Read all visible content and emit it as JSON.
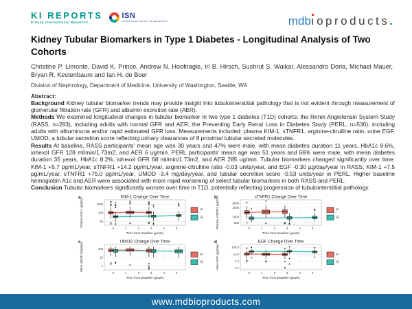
{
  "header": {
    "ki_logo": {
      "title": "KI REPORTS",
      "subtitle": "Kidney International Reports®"
    },
    "isn_logo": {
      "text": "ISN",
      "subtitle": "INTERNATIONAL SOCIETY OF NEPHROLOGY"
    },
    "mdb_logo": {
      "part1": "mdb",
      "i_stem": "ı",
      "part2": "oproducts",
      "dot": "."
    }
  },
  "title": "Kidney Tubular Biomarkers in Type 1 Diabetes - Longitudinal Analysis of Two Cohorts",
  "authors": "Christine P. Limonte, David K. Prince, Andrew N. Hoofnagle, Irl B. Hirsch, Sushrut S. Waikar, Alessandro Doria, Michael Mauer, Bryan R. Kestenbaum and Ian H. de Boer",
  "affiliation": "Division of Nephrology, Department of Medicine, University of Washington, Seattle, WA",
  "abstract": {
    "heading": "Abstract:",
    "sections": [
      {
        "label": "Background",
        "text": " Kidney tubular biomarker trends may provide insight into tubulointerstitial pathology that is not evident through measurement of glomerular filtration rate (GFR) and albumin excretion rate (AER)."
      },
      {
        "label": "Methods",
        "text": " We examined longitudinal changes in tubular biomarker in two type 1 diabetes (T1D) cohorts: the Renin Angiotensin System Study (RASS, n=283), including adults with normal GFR and AER; the Preventing Early Renal Loss in Diabetes Study (PERL, n=530), including adults with albuminuria and/or rapid estimated GFR loss. Measurements included: plasma KIM-1, sTNFR1, arginine-citrulline ratio; urine EGF, UMOD; a tubular secretion score reflecting urinary clearances of 8 proximal tubular secreted molecules."
      },
      {
        "label": "Results",
        "text": " At baseline, RASS participants' mean age was 30 years and 47% were male, with mean diabetes duration 11 years, HbA1c 8.6%, iohexol GFR 128 ml/min/1.73m2, and AER 6 ug/min. PERL participants' mean age was 51 years and 66% were male, with mean diabetes duration 35 years, HbA1c 8.2%, iohexol GFR 68 ml/min/1.73m2, and AER 285 ug/min. Tubular biomarkers changed significantly over time: KIM-1 +5.7 pg/mL/year, sTNFR1 +14.2 pg/mL/year, arginine-citrulline ratio -0.03 units/year, and EGF -0.30 µg/day/year in RASS; KIM-1 +7.5 pg/mL/year, sTNFR1 +75.0 pg/mL/year, UMOD -3.4 mg/day/year, and tubular secretion score -0.53 units/year in PERL. Higher baseline hemoglobin A1c and AER were associated with more rapid worsening of select tubular biomarkers in both RASS and PERL."
      },
      {
        "label": "Conclusion",
        "text": " Tubular biomarkers significantly worsen over time in T1D, potentially reflecting progression of tubulointerstitial pathology."
      }
    ]
  },
  "footer": {
    "url": "www.mdbioproducts.com",
    "bg_color": "#17699e"
  },
  "colors": {
    "ki_teal": "#00968b",
    "isn_blue": "#2b3a8f",
    "mdb_blue": "#2e7fc1",
    "mdb_red": "#e6332a",
    "perl_red": "#e96a5f",
    "rass_teal": "#35bfb3",
    "footer_blue": "#17699e"
  },
  "chart_data": [
    {
      "type": "boxplot",
      "panel": "a",
      "title": "KIM-1 Change Over Time",
      "xlabel": "Time from baseline (years)",
      "ylabel": "Plasma KIM-1 (pg/mL)",
      "x_ticks": [
        0,
        1,
        2,
        3,
        4,
        5
      ],
      "x_domain": [
        -0.7,
        5.7
      ],
      "y_scale": "log10",
      "y_domain": [
        3.5,
        3200
      ],
      "y_ticks": [
        10,
        100,
        1000
      ],
      "y_tick_labels": [
        "10",
        "100",
        "1000"
      ],
      "legend": [
        {
          "label": "P",
          "color": "#e96a5f"
        },
        {
          "label": "R",
          "color": "#35bfb3"
        }
      ],
      "series": [
        {
          "name": "P",
          "color": "#e96a5f",
          "dodge": -0.18,
          "boxes": [
            {
              "t": 0,
              "med": 100,
              "q1": 72,
              "q3": 140,
              "lo": 22,
              "hi": 430,
              "out": [
                1400,
                2000,
                900,
                700,
                7,
                5
              ]
            },
            {
              "t": 1.5,
              "med": 112,
              "q1": 78,
              "q3": 160,
              "lo": 24,
              "hi": 520,
              "out": [
                2200,
                1500,
                1100,
                6
              ],
              "w": 11
            },
            {
              "t": 3,
              "med": 108,
              "q1": 76,
              "q3": 150,
              "lo": 25,
              "hi": 480,
              "out": [
                1800,
                1200,
                900,
                8,
                6
              ]
            }
          ]
        },
        {
          "name": "R",
          "color": "#35bfb3",
          "dodge": 0.18,
          "boxes": [
            {
              "t": 0,
              "med": 35,
              "q1": 27,
              "q3": 46,
              "lo": 9,
              "hi": 130,
              "out": [
                400,
                650,
                900,
                1500,
                5
              ]
            },
            {
              "t": 3,
              "med": 40,
              "q1": 30,
              "q3": 52,
              "lo": 10,
              "hi": 150,
              "out": [
                500,
                800,
                6,
                4
              ]
            },
            {
              "t": 5,
              "med": 48,
              "q1": 36,
              "q3": 62,
              "lo": 12,
              "hi": 170,
              "out": [
                600,
                900,
                1200
              ]
            }
          ]
        }
      ]
    },
    {
      "type": "boxplot",
      "panel": "b",
      "title": "sTNFR1 Change Over Time",
      "xlabel": "Time from baseline (years)",
      "ylabel": "Plasma sTNFR1 (pg/mL)",
      "x_ticks": [
        0,
        1,
        2,
        3,
        4,
        5
      ],
      "x_domain": [
        -0.7,
        5.7
      ],
      "y_scale": "log10",
      "y_domain": [
        380,
        7500
      ],
      "y_ticks": [
        500,
        1000,
        3000,
        5000
      ],
      "y_tick_labels": [
        "500",
        "1000",
        "3000",
        "5000"
      ],
      "legend": [
        {
          "label": "P",
          "color": "#e96a5f"
        },
        {
          "label": "R",
          "color": "#35bfb3"
        }
      ],
      "series": [
        {
          "name": "P",
          "color": "#e96a5f",
          "dodge": -0.18,
          "boxes": [
            {
              "t": 0,
              "med": 1700,
              "q1": 1400,
              "q3": 2100,
              "lo": 800,
              "hi": 3600,
              "out": [
                5500,
                500
              ]
            },
            {
              "t": 1.5,
              "med": 1800,
              "q1": 1450,
              "q3": 2250,
              "lo": 850,
              "hi": 4200,
              "out": [
                6500,
                480
              ],
              "w": 11
            },
            {
              "t": 3,
              "med": 1850,
              "q1": 1500,
              "q3": 2300,
              "lo": 900,
              "hi": 3800,
              "out": [
                520,
                460
              ]
            }
          ]
        },
        {
          "name": "R",
          "color": "#35bfb3",
          "dodge": 0.18,
          "boxes": [
            {
              "t": 0,
              "med": 870,
              "q1": 760,
              "q3": 1000,
              "lo": 540,
              "hi": 1450,
              "out": [
                2600
              ]
            },
            {
              "t": 3,
              "med": 900,
              "q1": 780,
              "q3": 1050,
              "lo": 560,
              "hi": 1550,
              "out": [
                470,
                430
              ]
            },
            {
              "t": 5,
              "med": 950,
              "q1": 820,
              "q3": 1100,
              "lo": 600,
              "hi": 1650,
              "out": [
                2200,
                2500
              ]
            }
          ]
        }
      ]
    },
    {
      "type": "boxplot",
      "panel": "c",
      "title": "UMOD Change Over Time",
      "xlabel": "Time from baseline (years)",
      "ylabel": "Urine UMOD (mg/day)",
      "x_ticks": [
        0,
        1,
        2,
        3,
        4,
        5
      ],
      "x_domain": [
        -0.7,
        5.7
      ],
      "y_scale": "log10",
      "y_domain": [
        0.35,
        320
      ],
      "y_ticks": [
        1,
        10,
        100
      ],
      "y_tick_labels": [
        "1",
        "10",
        "100"
      ],
      "legend": [
        {
          "label": "P",
          "color": "#e96a5f"
        },
        {
          "label": "R",
          "color": "#35bfb3"
        }
      ],
      "series": [
        {
          "name": "P",
          "color": "#e96a5f",
          "dodge": -0.18,
          "boxes": [
            {
              "t": 0,
              "med": 68,
              "q1": 48,
              "q3": 95,
              "lo": 14,
              "hi": 210,
              "out": [
                2.2,
                1.6
              ]
            },
            {
              "t": 1.5,
              "med": 72,
              "q1": 52,
              "q3": 100,
              "lo": 15,
              "hi": 220,
              "out": [
                1.3
              ],
              "w": 11
            },
            {
              "t": 3,
              "med": 62,
              "q1": 42,
              "q3": 90,
              "lo": 11,
              "hi": 200,
              "out": [
                1.8,
                1.0,
                0.6,
                0.45
              ]
            }
          ]
        },
        {
          "name": "R",
          "color": "#35bfb3",
          "dodge": 0.18,
          "boxes": [
            {
              "t": 0,
              "med": 58,
              "q1": 40,
              "q3": 80,
              "lo": 11,
              "hi": 180,
              "out": [
                2.8,
                2.2
              ]
            },
            {
              "t": 3,
              "med": 56,
              "q1": 38,
              "q3": 78,
              "lo": 10,
              "hi": 175,
              "out": []
            },
            {
              "t": 5,
              "med": 52,
              "q1": 33,
              "q3": 75,
              "lo": 8,
              "hi": 170,
              "out": [],
              "w": 11
            }
          ]
        }
      ]
    },
    {
      "type": "boxplot",
      "panel": "d",
      "title": "EGF Change Over Time",
      "xlabel": "Time from baseline (years)",
      "ylabel": "Urine EGF (µg/day)",
      "x_ticks": [
        0,
        1,
        2,
        3,
        4,
        5
      ],
      "x_domain": [
        -0.7,
        5.7
      ],
      "y_scale": "log10",
      "y_domain": [
        0.06,
        250
      ],
      "y_ticks": [
        0.1,
        1,
        10,
        100
      ],
      "y_tick_labels": [
        "0.1",
        "1.0",
        "10.0",
        "100.0"
      ],
      "legend": [
        {
          "label": "P",
          "color": "#e96a5f"
        },
        {
          "label": "R",
          "color": "#35bfb3"
        }
      ],
      "series": [
        {
          "name": "P",
          "color": "#e96a5f",
          "dodge": -0.18,
          "boxes": [
            {
              "t": 0,
              "med": 11,
              "q1": 7.5,
              "q3": 16,
              "lo": 2.4,
              "hi": 36,
              "out": [
                75,
                1.3,
                0.9
              ]
            },
            {
              "t": 1.5,
              "med": 10,
              "q1": 7,
              "q3": 15,
              "lo": 2.2,
              "hi": 34,
              "out": [
                1.1,
                0.8
              ],
              "w": 11
            },
            {
              "t": 3,
              "med": 9.5,
              "q1": 6.5,
              "q3": 14,
              "lo": 2.1,
              "hi": 33,
              "out": [
                65,
                0.9,
                0.12
              ]
            }
          ]
        },
        {
          "name": "R",
          "color": "#35bfb3",
          "dodge": 0.18,
          "boxes": [
            {
              "t": 0,
              "med": 25,
              "q1": 20,
              "q3": 32,
              "lo": 9,
              "hi": 62,
              "out": [
                95,
                3.2
              ]
            },
            {
              "t": 3,
              "med": 26,
              "q1": 21,
              "q3": 33,
              "lo": 10,
              "hi": 65,
              "out": [
                110,
                2.5,
                0.4
              ]
            },
            {
              "t": 5,
              "med": 22,
              "q1": 17,
              "q3": 29,
              "lo": 8,
              "hi": 58,
              "out": [
                85,
                4
              ]
            }
          ]
        }
      ]
    }
  ]
}
